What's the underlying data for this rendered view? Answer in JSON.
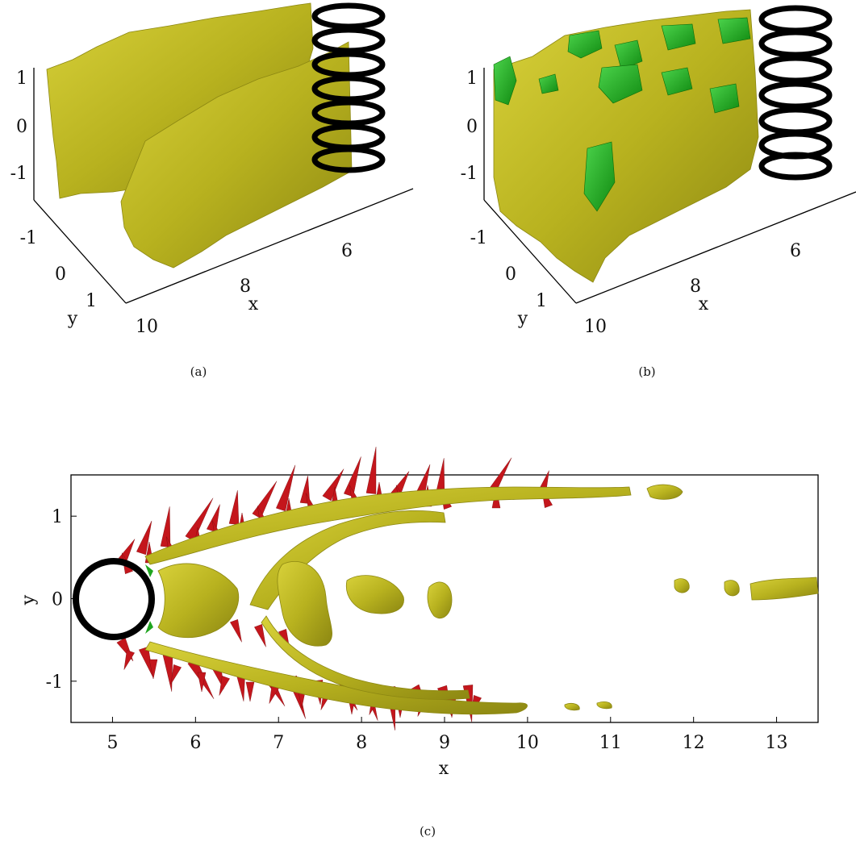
{
  "panels": [
    {
      "id": "a",
      "caption": "(a)",
      "z_ticks": [
        "1",
        "0",
        "-1"
      ],
      "y_ticks": [
        "-1",
        "0",
        "1"
      ],
      "y_label": "y",
      "x_ticks": [
        "10",
        "8",
        "6"
      ],
      "x_label": "x"
    },
    {
      "id": "b",
      "caption": "(b)",
      "z_ticks": [
        "1",
        "0",
        "-1"
      ],
      "y_ticks": [
        "-1",
        "0",
        "1"
      ],
      "y_label": "y",
      "x_ticks": [
        "10",
        "8",
        "6"
      ],
      "x_label": "x"
    },
    {
      "id": "c",
      "caption": "(c)",
      "x_ticks": [
        "5",
        "6",
        "7",
        "8",
        "9",
        "10",
        "11",
        "12",
        "13"
      ],
      "y_ticks": [
        "1",
        "0",
        "-1"
      ],
      "x_label": "x",
      "y_label": "y",
      "x_range": [
        4.5,
        13.5
      ],
      "y_range": [
        -1.5,
        1.5
      ]
    }
  ],
  "colors": {
    "isosurface": "#b8b21f",
    "isosurface_shade": "#8c8712",
    "negative_surface": "#1fa51f",
    "arrows": "#c4161c",
    "cylinder": "#000000"
  }
}
